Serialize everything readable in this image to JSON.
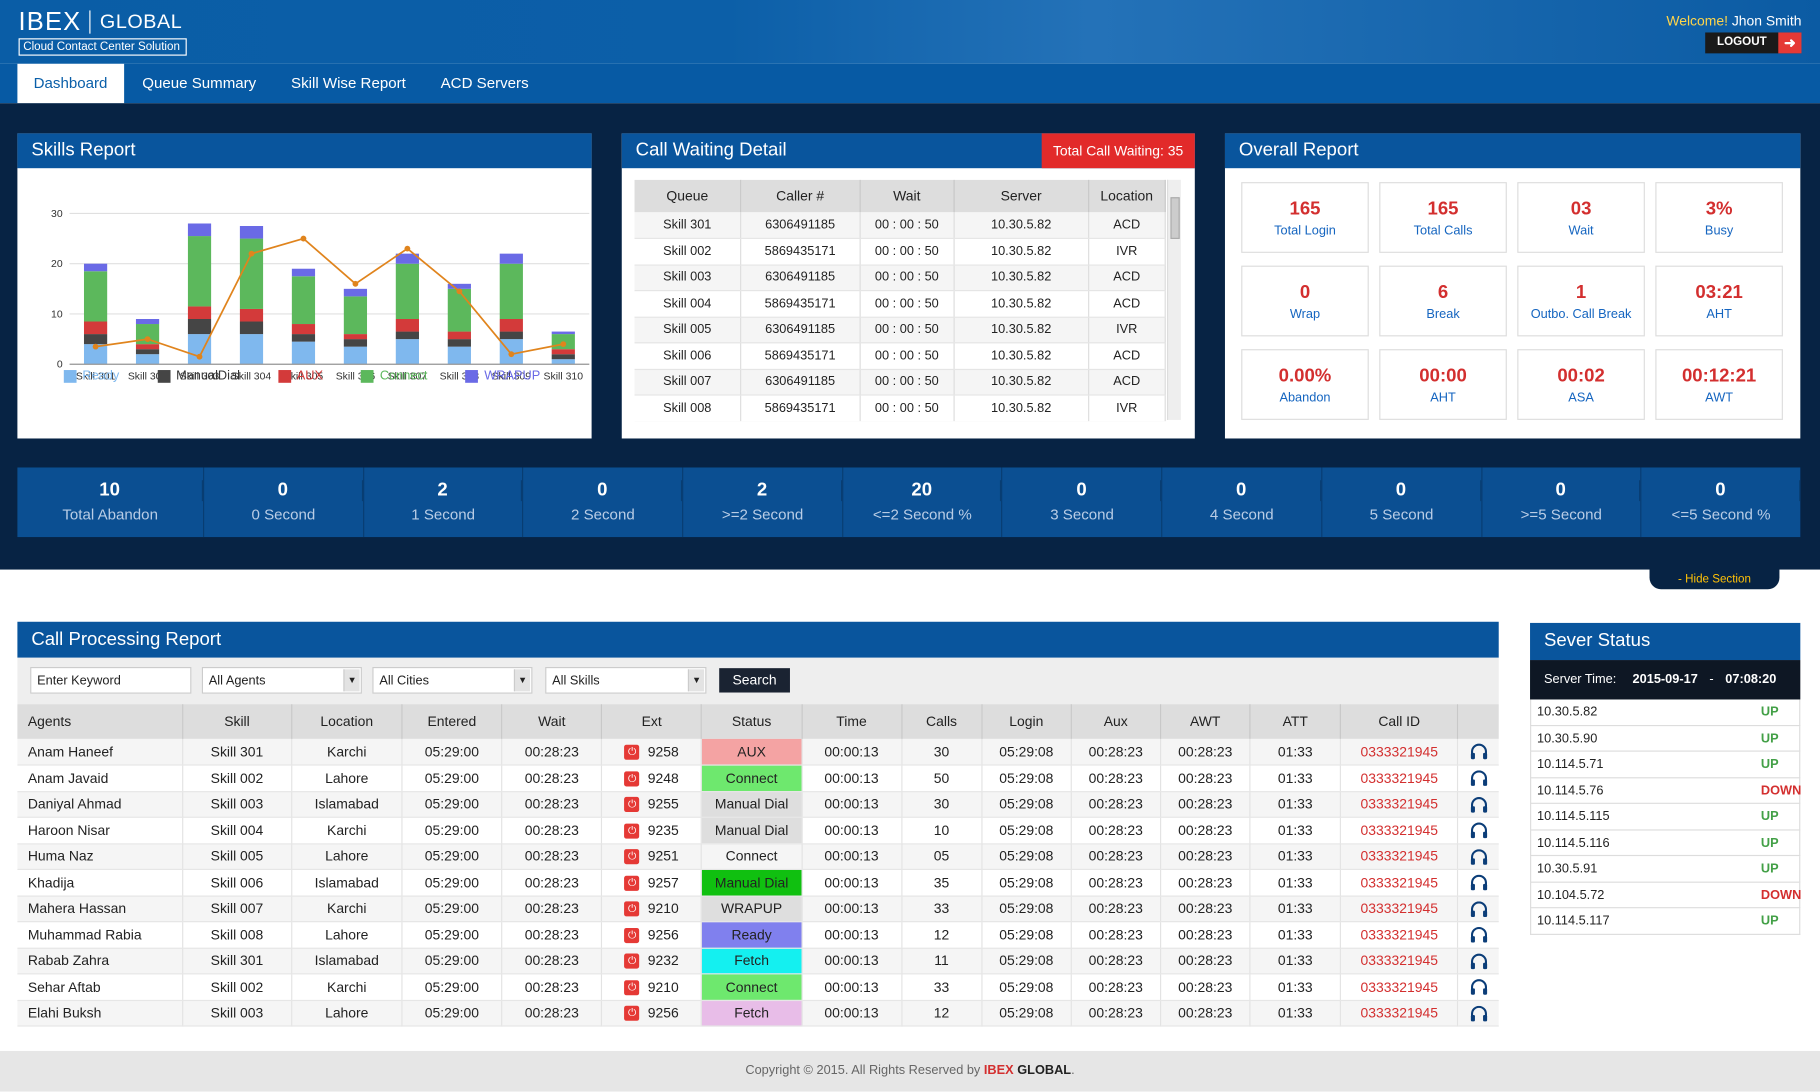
{
  "header": {
    "logo_main": "IBEX",
    "logo_brand": "GLOBAL",
    "logo_sub": "Cloud Contact Center Solution",
    "welcome_label": "Welcome!",
    "user_name": "Jhon Smith",
    "logout_label": "LOGOUT"
  },
  "nav": {
    "tabs": [
      {
        "label": "Dashboard"
      },
      {
        "label": "Queue Summary"
      },
      {
        "label": "Skill  Wise Report"
      },
      {
        "label": "ACD Servers"
      }
    ]
  },
  "skills_report": {
    "title": "Skills Report"
  },
  "chart_data": {
    "type": "bar",
    "stacked": true,
    "categories": [
      "Skill 301",
      "Skill 302",
      "Skill 303",
      "Skill 304",
      "Skill 305",
      "Skill 306",
      "Skill 307",
      "Skill 308",
      "Skill 309",
      "Skill 310"
    ],
    "ylim": [
      0,
      30
    ],
    "yticks": [
      "0",
      "10",
      "20",
      "30"
    ],
    "grid": true,
    "legend_position": "bottom",
    "series": [
      {
        "name": "Ready",
        "color": "#7fb8ee",
        "values": [
          4,
          2,
          6,
          6,
          4.5,
          3.5,
          5,
          3.5,
          5,
          1
        ]
      },
      {
        "name": "ManualDial",
        "color": "#454545",
        "values": [
          2,
          1,
          3,
          2.5,
          1.5,
          1.5,
          1.5,
          1.5,
          1.5,
          1
        ]
      },
      {
        "name": "AUX",
        "color": "#d33a3a",
        "values": [
          2.5,
          1,
          2.5,
          2.5,
          2,
          1,
          2.5,
          1.5,
          2.5,
          1
        ]
      },
      {
        "name": "Connect",
        "color": "#5cb85c",
        "values": [
          10,
          4,
          14,
          14,
          9.5,
          7.5,
          11,
          8.5,
          11,
          3
        ]
      },
      {
        "name": "WRAPUP",
        "color": "#6a6ae6",
        "values": [
          1.5,
          1,
          2.5,
          2.5,
          1.5,
          1.5,
          2,
          1,
          2,
          0.5
        ]
      }
    ],
    "line": {
      "color": "#e0841d",
      "values": [
        3.5,
        5,
        1.5,
        22,
        25,
        16,
        23,
        14.5,
        2,
        4
      ]
    }
  },
  "call_waiting": {
    "title": "Call Waiting Detail",
    "total_label": "Total Call Waiting: 35",
    "columns": [
      "Queue",
      "Caller #",
      "Wait",
      "Server",
      "Location"
    ],
    "rows": [
      [
        "Skill 301",
        "6306491185",
        "00 : 00 : 50",
        "10.30.5.82",
        "ACD"
      ],
      [
        "Skill 002",
        "5869435171",
        "00 : 00 : 50",
        "10.30.5.82",
        "IVR"
      ],
      [
        "Skill 003",
        "6306491185",
        "00 : 00 : 50",
        "10.30.5.82",
        "ACD"
      ],
      [
        "Skill 004",
        "5869435171",
        "00 : 00 : 50",
        "10.30.5.82",
        "ACD"
      ],
      [
        "Skill 005",
        "6306491185",
        "00 : 00 : 50",
        "10.30.5.82",
        "IVR"
      ],
      [
        "Skill 006",
        "5869435171",
        "00 : 00 : 50",
        "10.30.5.82",
        "ACD"
      ],
      [
        "Skill 007",
        "6306491185",
        "00 : 00 : 50",
        "10.30.5.82",
        "ACD"
      ],
      [
        "Skill 008",
        "5869435171",
        "00 : 00 : 50",
        "10.30.5.82",
        "IVR"
      ]
    ]
  },
  "overall": {
    "title": "Overall Report",
    "stats": [
      {
        "value": "165",
        "label": "Total Login"
      },
      {
        "value": "165",
        "label": "Total Calls"
      },
      {
        "value": "03",
        "label": "Wait"
      },
      {
        "value": "3%",
        "label": "Busy"
      },
      {
        "value": "0",
        "label": "Wrap"
      },
      {
        "value": "6",
        "label": "Break"
      },
      {
        "value": "1",
        "label": "Outbo. Call Break"
      },
      {
        "value": "03:21",
        "label": "AHT"
      },
      {
        "value": "0.00%",
        "label": "Abandon"
      },
      {
        "value": "00:00",
        "label": "AHT"
      },
      {
        "value": "00:02",
        "label": "ASA"
      },
      {
        "value": "00:12:21",
        "label": "AWT"
      }
    ]
  },
  "abandon_strip": [
    {
      "value": "10",
      "label": "Total Abandon"
    },
    {
      "value": "0",
      "label": "0 Second"
    },
    {
      "value": "2",
      "label": "1 Second"
    },
    {
      "value": "0",
      "label": "2 Second"
    },
    {
      "value": "2",
      "label": ">=2 Second"
    },
    {
      "value": "20",
      "label": "<=2 Second %"
    },
    {
      "value": "0",
      "label": "3 Second"
    },
    {
      "value": "0",
      "label": "4 Second"
    },
    {
      "value": "0",
      "label": "5 Second"
    },
    {
      "value": "0",
      "label": ">=5 Second"
    },
    {
      "value": "0",
      "label": "<=5 Second %"
    }
  ],
  "hide_section_label": "-  Hide Section",
  "call_processing": {
    "title": "Call Processing Report",
    "keyword_placeholder": "Enter Keyword",
    "agents_select": "All Agents",
    "cities_select": "All Cities",
    "skills_select": "All Skills",
    "search_label": "Search",
    "columns": [
      "Agents",
      "Skill",
      "Location",
      "Entered",
      "Wait",
      "Ext",
      "Status",
      "Time",
      "Calls",
      "Login",
      "Aux",
      "AWT",
      "ATT",
      "Call ID"
    ],
    "rows": [
      {
        "agent": "Anam Haneef",
        "skill": "Skill 301",
        "location": "Karchi",
        "entered": "05:29:00",
        "wait": "00:28:23",
        "ext": "9258",
        "status": "AUX",
        "status_color": "#f4a3a3",
        "time": "00:00:13",
        "calls": "30",
        "login": "05:29:08",
        "aux": "00:28:23",
        "awt": "00:28:23",
        "att": "01:33",
        "call_id": "0333321945"
      },
      {
        "agent": "Anam Javaid",
        "skill": "Skill 002",
        "location": "Lahore",
        "entered": "05:29:00",
        "wait": "00:28:23",
        "ext": "9248",
        "status": "Connect",
        "status_color": "#6ee86e",
        "time": "00:00:13",
        "calls": "50",
        "login": "05:29:08",
        "aux": "00:28:23",
        "awt": "00:28:23",
        "att": "01:33",
        "call_id": "0333321945"
      },
      {
        "agent": "Daniyal Ahmad",
        "skill": "Skill 003",
        "location": "Islamabad",
        "entered": "05:29:00",
        "wait": "00:28:23",
        "ext": "9255",
        "status": "Manual Dial",
        "status_color": "#dedede",
        "time": "00:00:13",
        "calls": "30",
        "login": "05:29:08",
        "aux": "00:28:23",
        "awt": "00:28:23",
        "att": "01:33",
        "call_id": "0333321945"
      },
      {
        "agent": "Haroon Nisar",
        "skill": "Skill 004",
        "location": "Karchi",
        "entered": "05:29:00",
        "wait": "00:28:23",
        "ext": "9235",
        "status": "Manual Dial",
        "status_color": "#dedede",
        "time": "00:00:13",
        "calls": "10",
        "login": "05:29:08",
        "aux": "00:28:23",
        "awt": "00:28:23",
        "att": "01:33",
        "call_id": "0333321945"
      },
      {
        "agent": "Huma Naz",
        "skill": "Skill 005",
        "location": "Lahore",
        "entered": "05:29:00",
        "wait": "00:28:23",
        "ext": "9251",
        "status": "Connect",
        "status_color": "#f5f5f5",
        "time": "00:00:13",
        "calls": "05",
        "login": "05:29:08",
        "aux": "00:28:23",
        "awt": "00:28:23",
        "att": "01:33",
        "call_id": "0333321945"
      },
      {
        "agent": "Khadija",
        "skill": "Skill 006",
        "location": "Islamabad",
        "entered": "05:29:00",
        "wait": "00:28:23",
        "ext": "9257",
        "status": "Manual Dial",
        "status_color": "#10c010",
        "time": "00:00:13",
        "calls": "35",
        "login": "05:29:08",
        "aux": "00:28:23",
        "awt": "00:28:23",
        "att": "01:33",
        "call_id": "0333321945"
      },
      {
        "agent": "Mahera Hassan",
        "skill": "Skill 007",
        "location": "Karchi",
        "entered": "05:29:00",
        "wait": "00:28:23",
        "ext": "9210",
        "status": "WRAPUP",
        "status_color": "#dedede",
        "time": "00:00:13",
        "calls": "33",
        "login": "05:29:08",
        "aux": "00:28:23",
        "awt": "00:28:23",
        "att": "01:33",
        "call_id": "0333321945"
      },
      {
        "agent": "Muhammad Rabia",
        "skill": "Skill 008",
        "location": "Lahore",
        "entered": "05:29:00",
        "wait": "00:28:23",
        "ext": "9256",
        "status": "Ready",
        "status_color": "#8080ee",
        "time": "00:00:13",
        "calls": "12",
        "login": "05:29:08",
        "aux": "00:28:23",
        "awt": "00:28:23",
        "att": "01:33",
        "call_id": "0333321945"
      },
      {
        "agent": "Rabab Zahra",
        "skill": "Skill 301",
        "location": "Islamabad",
        "entered": "05:29:00",
        "wait": "00:28:23",
        "ext": "9232",
        "status": "Fetch",
        "status_color": "#14f0f0",
        "time": "00:00:13",
        "calls": "11",
        "login": "05:29:08",
        "aux": "00:28:23",
        "awt": "00:28:23",
        "att": "01:33",
        "call_id": "0333321945"
      },
      {
        "agent": "Sehar Aftab",
        "skill": "Skill 002",
        "location": "Karchi",
        "entered": "05:29:00",
        "wait": "00:28:23",
        "ext": "9210",
        "status": "Connect",
        "status_color": "#6ee86e",
        "time": "00:00:13",
        "calls": "33",
        "login": "05:29:08",
        "aux": "00:28:23",
        "awt": "00:28:23",
        "att": "01:33",
        "call_id": "0333321945"
      },
      {
        "agent": "Elahi Buksh",
        "skill": "Skill 003",
        "location": "Lahore",
        "entered": "05:29:00",
        "wait": "00:28:23",
        "ext": "9256",
        "status": "Fetch",
        "status_color": "#e8bde8",
        "time": "00:00:13",
        "calls": "12",
        "login": "05:29:08",
        "aux": "00:28:23",
        "awt": "00:28:23",
        "att": "01:33",
        "call_id": "0333321945"
      }
    ]
  },
  "server_status": {
    "title": "Sever Status",
    "time_label": "Server Time:",
    "date": "2015-09-17",
    "dash": "-",
    "time": "07:08:20",
    "servers": [
      {
        "ip": "10.30.5.82",
        "status": "UP"
      },
      {
        "ip": "10.30.5.90",
        "status": "UP"
      },
      {
        "ip": "10.114.5.71",
        "status": "UP"
      },
      {
        "ip": "10.114.5.76",
        "status": "DOWN"
      },
      {
        "ip": "10.114.5.115",
        "status": "UP"
      },
      {
        "ip": "10.114.5.116",
        "status": "UP"
      },
      {
        "ip": "10.30.5.91",
        "status": "UP"
      },
      {
        "ip": "10.104.5.72",
        "status": "DOWN"
      },
      {
        "ip": "10.114.5.117",
        "status": "UP"
      }
    ]
  },
  "footer": {
    "text": "Copyright © 2015. All Rights Reserved by",
    "brand1": "IBEX",
    "brand2": "GLOBAL",
    "end": "."
  }
}
